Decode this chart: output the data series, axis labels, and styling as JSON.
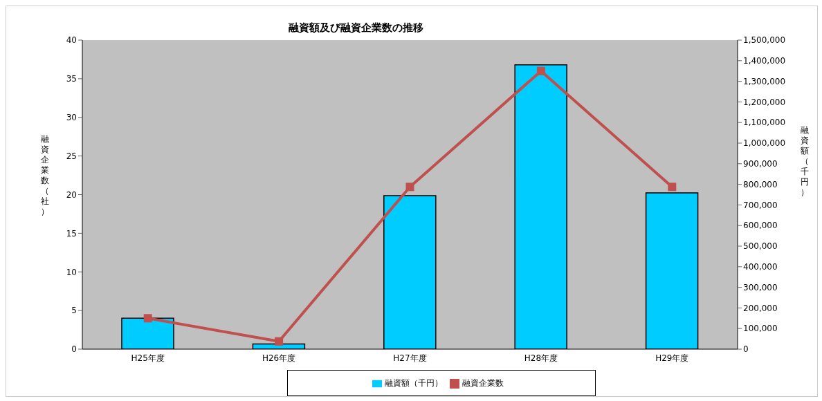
{
  "chart_data": {
    "type": "bar",
    "title": "融資額及び融資企業数の推移",
    "ylabel": "融資企業数（社）",
    "y2label": "融資額（千円）",
    "categories": [
      "H25年度",
      "H26年度",
      "H27年度",
      "H28年度",
      "H29年度"
    ],
    "series": [
      {
        "name": "融資額（千円）",
        "axis": "y2",
        "color": "#00ccff",
        "values": [
          150000,
          25000,
          745000,
          1380000,
          758000
        ]
      },
      {
        "name": "融資企業数",
        "type": "line",
        "color": "#c0504d",
        "marker": "square",
        "values": [
          4,
          1,
          21,
          36,
          21
        ]
      }
    ],
    "ylim": [
      0,
      40
    ],
    "yticks": [
      0,
      5,
      10,
      15,
      20,
      25,
      30,
      35,
      40
    ],
    "y2lim": [
      0,
      1500000
    ],
    "y2ticks": [
      {
        "value": 0,
        "label": "0"
      },
      {
        "value": 100000,
        "label": "100,000"
      },
      {
        "value": 200000,
        "label": "200,000"
      },
      {
        "value": 300000,
        "label": "300,000"
      },
      {
        "value": 400000,
        "label": "400,000"
      },
      {
        "value": 500000,
        "label": "500,000"
      },
      {
        "value": 600000,
        "label": "600,000"
      },
      {
        "value": 700000,
        "label": "700,000"
      },
      {
        "value": 800000,
        "label": "800,000"
      },
      {
        "value": 900000,
        "label": "900,000"
      },
      {
        "value": 1000000,
        "label": "1,000,000"
      },
      {
        "value": 1100000,
        "label": "1,100,000"
      },
      {
        "value": 1200000,
        "label": "1,200,000"
      },
      {
        "value": 1300000,
        "label": "1,300,000"
      },
      {
        "value": 1400000,
        "label": "1,400,000"
      },
      {
        "value": 1500000,
        "label": "1,500,000"
      }
    ],
    "legend": "bottom"
  }
}
